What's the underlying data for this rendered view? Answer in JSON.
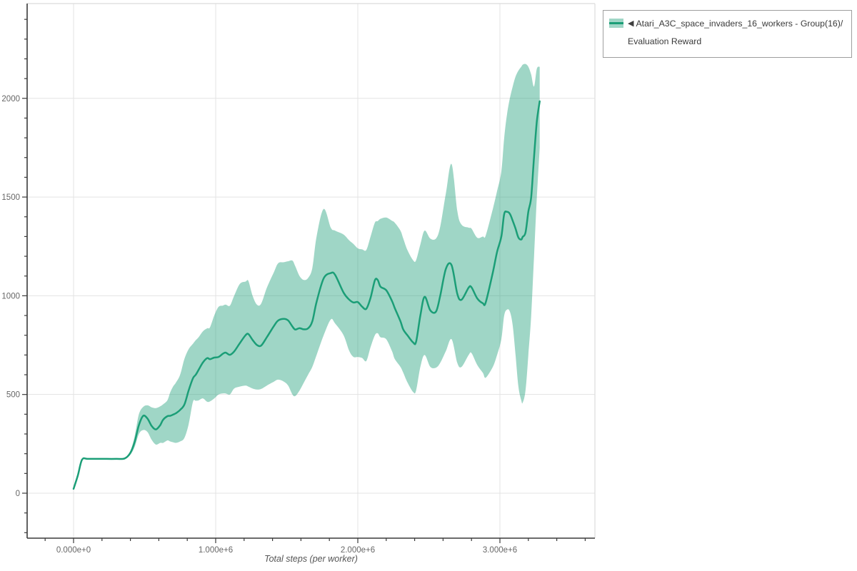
{
  "legend": {
    "series_label_line1": "Atari_A3C_space_invaders_16_workers - Group(16)/",
    "series_label_line2": "Evaluation Reward",
    "marker_icon": "left-triangle-icon",
    "marker_glyph": "◀"
  },
  "chart_data": {
    "type": "line",
    "title": "",
    "xlabel": "Total steps (per worker)",
    "ylabel": "",
    "legend_position": "outside-top-right",
    "grid": true,
    "series": [
      {
        "name": "Atari_A3C_space_invaders_16_workers - Group(16)/Evaluation Reward",
        "line_color": "#1b9e77",
        "band_color": "#1b9e77",
        "band_opacity": 0.42,
        "steps_millions": [
          0.0,
          0.03,
          0.06,
          0.1,
          0.2,
          0.3,
          0.36,
          0.4,
          0.43,
          0.46,
          0.49,
          0.52,
          0.55,
          0.58,
          0.61,
          0.63,
          0.66,
          0.68,
          0.7,
          0.72,
          0.75,
          0.78,
          0.81,
          0.84,
          0.86,
          0.88,
          0.91,
          0.94,
          0.96,
          0.99,
          1.02,
          1.05,
          1.07,
          1.1,
          1.13,
          1.17,
          1.21,
          1.23,
          1.26,
          1.29,
          1.32,
          1.36,
          1.41,
          1.44,
          1.48,
          1.51,
          1.54,
          1.56,
          1.59,
          1.62,
          1.65,
          1.68,
          1.71,
          1.76,
          1.81,
          1.84,
          1.9,
          1.94,
          1.97,
          2.0,
          2.03,
          2.06,
          2.09,
          2.12,
          2.14,
          2.16,
          2.2,
          2.24,
          2.26,
          2.3,
          2.32,
          2.35,
          2.39,
          2.41,
          2.44,
          2.47,
          2.51,
          2.55,
          2.58,
          2.62,
          2.66,
          2.7,
          2.73,
          2.78,
          2.8,
          2.84,
          2.88,
          2.9,
          2.95,
          2.98,
          3.01,
          3.03,
          3.05,
          3.07,
          3.09,
          3.11,
          3.13,
          3.15,
          3.16,
          3.18,
          3.2,
          3.22,
          3.24,
          3.26,
          3.28
        ],
        "reward": [
          22,
          90,
          170,
          174,
          174,
          174,
          176,
          205,
          260,
          345,
          392,
          378,
          340,
          323,
          345,
          372,
          390,
          392,
          398,
          405,
          422,
          449,
          521,
          582,
          600,
          625,
          662,
          684,
          679,
          687,
          690,
          706,
          712,
          701,
          718,
          760,
          800,
          806,
          776,
          751,
          748,
          790,
          847,
          875,
          883,
          875,
          844,
          829,
          836,
          830,
          835,
          870,
          969,
          1088,
          1115,
          1106,
          1016,
          980,
          966,
          968,
          945,
          934,
          990,
          1078,
          1080,
          1046,
          1028,
          974,
          938,
          871,
          829,
          799,
          763,
          767,
          900,
          995,
          926,
          920,
          1000,
          1137,
          1155,
          1010,
          980,
          1041,
          1043,
          987,
          962,
          966,
          1118,
          1222,
          1300,
          1414,
          1425,
          1415,
          1380,
          1340,
          1295,
          1285,
          1298,
          1320,
          1426,
          1500,
          1703,
          1884,
          1985
        ],
        "band_lower": [
          22,
          90,
          170,
          174,
          174,
          174,
          176,
          195,
          235,
          300,
          320,
          310,
          270,
          246,
          255,
          255,
          267,
          262,
          258,
          255,
          262,
          280,
          350,
          463,
          468,
          470,
          480,
          463,
          465,
          480,
          500,
          505,
          505,
          500,
          530,
          540,
          545,
          540,
          530,
          525,
          528,
          545,
          565,
          575,
          565,
          545,
          500,
          492,
          520,
          560,
          600,
          640,
          700,
          800,
          880,
          860,
          800,
          720,
          690,
          690,
          685,
          670,
          740,
          800,
          810,
          790,
          780,
          720,
          680,
          640,
          610,
          560,
          512,
          520,
          640,
          700,
          640,
          636,
          660,
          720,
          780,
          660,
          640,
          700,
          710,
          650,
          610,
          585,
          640,
          700,
          780,
          900,
          930,
          920,
          850,
          700,
          540,
          470,
          458,
          520,
          700,
          900,
          1200,
          1500,
          1750
        ],
        "band_upper": [
          22,
          90,
          170,
          174,
          174,
          174,
          176,
          215,
          290,
          400,
          437,
          445,
          435,
          431,
          440,
          450,
          470,
          510,
          540,
          560,
          600,
          680,
          730,
          757,
          775,
          790,
          820,
          835,
          840,
          900,
          944,
          950,
          955,
          950,
          1000,
          1060,
          1072,
          1075,
          1000,
          955,
          960,
          1040,
          1120,
          1165,
          1170,
          1175,
          1178,
          1150,
          1100,
          1080,
          1090,
          1140,
          1300,
          1440,
          1345,
          1330,
          1310,
          1280,
          1262,
          1240,
          1235,
          1232,
          1300,
          1370,
          1378,
          1390,
          1396,
          1380,
          1370,
          1330,
          1290,
          1230,
          1179,
          1180,
          1260,
          1330,
          1290,
          1290,
          1350,
          1520,
          1667,
          1430,
          1360,
          1345,
          1340,
          1294,
          1300,
          1305,
          1440,
          1530,
          1630,
          1800,
          1920,
          2000,
          2060,
          2110,
          2140,
          2160,
          2170,
          2174,
          2160,
          2120,
          2060,
          2150,
          2160
        ]
      }
    ],
    "x_domain_millions": [
      -0.3266,
      3.6683
    ],
    "y_domain": [
      -227.8,
      2480
    ],
    "x_major_ticks_millions": [
      0,
      1,
      2,
      3
    ],
    "x_tick_labels": [
      "0.000e+0",
      "1.000e+6",
      "2.000e+6",
      "3.000e+6"
    ],
    "x_minor_ticks_range_millions": [
      -0.2,
      3.6,
      0.2
    ],
    "y_major_ticks": [
      0,
      500,
      1000,
      1500,
      2000
    ],
    "y_tick_labels": [
      "0",
      "500",
      "1000",
      "1500",
      "2000"
    ],
    "y_minor_ticks_range": [
      -200,
      2400,
      100
    ],
    "colors": {
      "axis": "#3a3a3a",
      "gridline": "#e3e3e3",
      "plot_border": "#e0e0e0",
      "tick_label": "#666666",
      "axis_title": "#555555"
    }
  }
}
